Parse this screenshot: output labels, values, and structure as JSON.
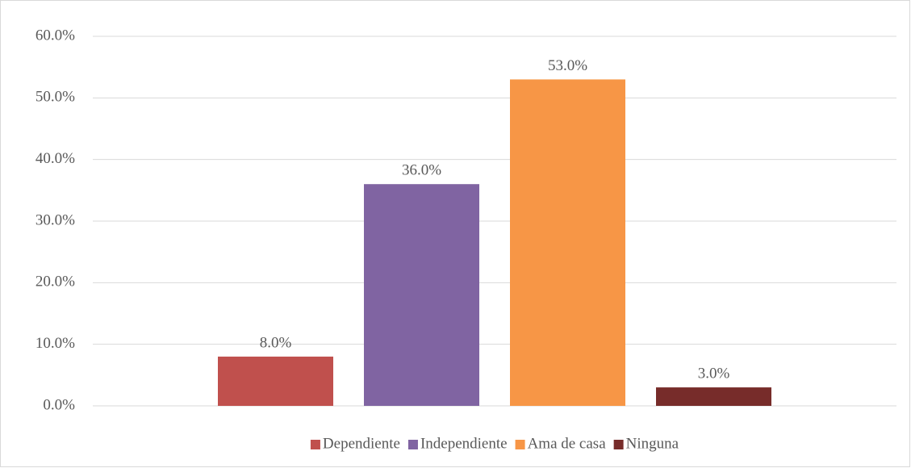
{
  "chart_data": {
    "type": "bar",
    "categories": [
      null
    ],
    "series": [
      {
        "name": "Dependiente",
        "color": "#c0504d",
        "values": [
          8
        ],
        "value_labels": [
          "8.0%"
        ]
      },
      {
        "name": "Independiente",
        "color": "#8064a2",
        "values": [
          36
        ],
        "value_labels": [
          "36.0%"
        ]
      },
      {
        "name": "Ama de casa",
        "color": "#f79646",
        "values": [
          53
        ],
        "value_labels": [
          "53.0%"
        ]
      },
      {
        "name": "Ninguna",
        "color": "#772c2a",
        "values": [
          3
        ],
        "value_labels": [
          "3.0%"
        ]
      }
    ],
    "ylim": [
      0,
      60
    ],
    "yticks": [
      {
        "value": 0,
        "label": "0.0%"
      },
      {
        "value": 10,
        "label": "10.0%"
      },
      {
        "value": 20,
        "label": "20.0%"
      },
      {
        "value": 30,
        "label": "30.0%"
      },
      {
        "value": 40,
        "label": "40.0%"
      },
      {
        "value": 50,
        "label": "50.0%"
      },
      {
        "value": 60,
        "label": "60.0%"
      }
    ],
    "grid": true,
    "legend": "bottom"
  }
}
